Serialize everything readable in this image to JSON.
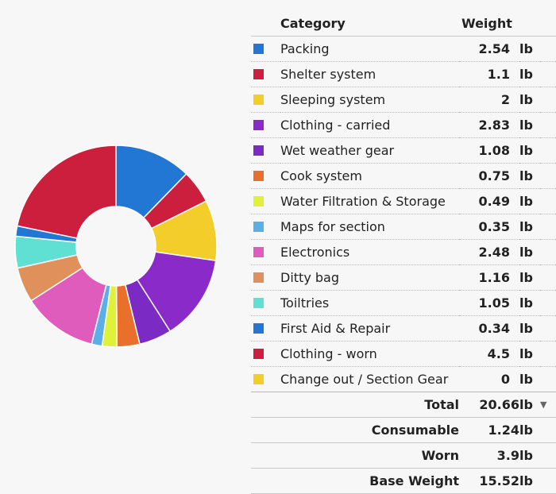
{
  "chart_data": {
    "type": "pie",
    "style": "donut",
    "categories": [
      "Packing",
      "Shelter system",
      "Sleeping system",
      "Clothing - carried",
      "Wet weather gear",
      "Cook system",
      "Water Filtration & Storage",
      "Maps for section",
      "Electronics",
      "Ditty bag",
      "Toiltries",
      "First Aid & Repair",
      "Clothing - worn",
      "Change out / Section Gear"
    ],
    "values": [
      2.54,
      1.1,
      2,
      2.83,
      1.08,
      0.75,
      0.49,
      0.35,
      2.48,
      1.16,
      1.05,
      0.34,
      4.5,
      0
    ],
    "colors": [
      "#2277d4",
      "#cc1f3d",
      "#f3cd2a",
      "#8a2ac8",
      "#7b2ac4",
      "#e8702a",
      "#dff23a",
      "#5aafe6",
      "#e05cbc",
      "#e0905a",
      "#5fe0d2",
      "#2277d4",
      "#cc1f3d",
      "#f3cd2a"
    ],
    "legend": "table-right"
  },
  "table": {
    "headers": {
      "category": "Category",
      "weight": "Weight"
    },
    "unit": "lb",
    "items": [
      {
        "name": "Packing",
        "value": "2.54",
        "color": "#2277d4"
      },
      {
        "name": "Shelter system",
        "value": "1.1",
        "color": "#cc1f3d"
      },
      {
        "name": "Sleeping system",
        "value": "2",
        "color": "#f3cd2a"
      },
      {
        "name": "Clothing - carried",
        "value": "2.83",
        "color": "#8a2ac8"
      },
      {
        "name": "Wet weather gear",
        "value": "1.08",
        "color": "#7b2ac4"
      },
      {
        "name": "Cook system",
        "value": "0.75",
        "color": "#e8702a"
      },
      {
        "name": "Water Filtration & Storage",
        "value": "0.49",
        "color": "#dff23a"
      },
      {
        "name": "Maps for section",
        "value": "0.35",
        "color": "#5aafe6"
      },
      {
        "name": "Electronics",
        "value": "2.48",
        "color": "#e05cbc"
      },
      {
        "name": "Ditty bag",
        "value": "1.16",
        "color": "#e0905a"
      },
      {
        "name": "Toiltries",
        "value": "1.05",
        "color": "#5fe0d2"
      },
      {
        "name": "First Aid & Repair",
        "value": "0.34",
        "color": "#2277d4"
      },
      {
        "name": "Clothing - worn",
        "value": "4.5",
        "color": "#cc1f3d"
      },
      {
        "name": "Change out / Section Gear",
        "value": "0",
        "color": "#f3cd2a"
      }
    ],
    "summary": [
      {
        "label": "Total",
        "value": "20.66",
        "unit": "lb",
        "dropdown_icon": "caret-down-icon"
      },
      {
        "label": "Consumable",
        "value": "1.24",
        "unit": "lb"
      },
      {
        "label": "Worn",
        "value": "3.9",
        "unit": "lb"
      },
      {
        "label": "Base Weight",
        "value": "15.52",
        "unit": "lb"
      }
    ]
  }
}
